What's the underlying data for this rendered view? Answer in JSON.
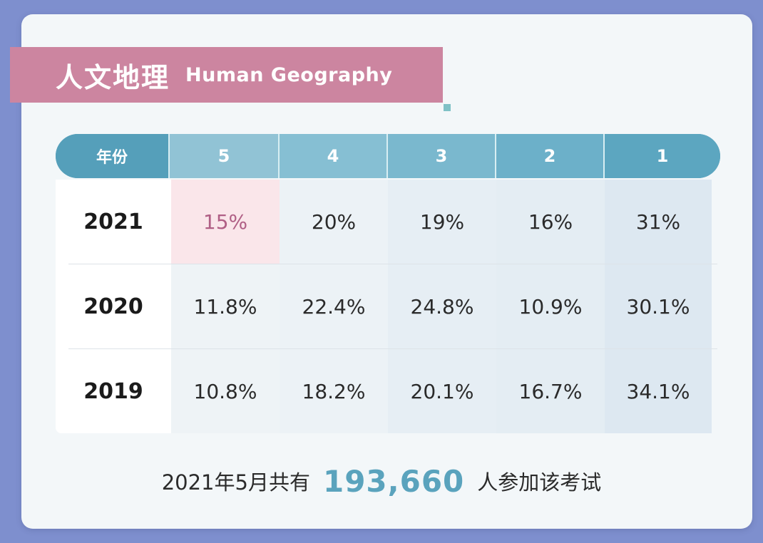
{
  "title": {
    "cn": "人文地理",
    "en": "Human Geography"
  },
  "chart_data": {
    "type": "table",
    "columns": [
      "年份",
      "5",
      "4",
      "3",
      "2",
      "1"
    ],
    "rows": [
      {
        "year": "2021",
        "values": [
          "15%",
          "20%",
          "19%",
          "16%",
          "31%"
        ]
      },
      {
        "year": "2020",
        "values": [
          "11.8%",
          "22.4%",
          "24.8%",
          "10.9%",
          "30.1%"
        ]
      },
      {
        "year": "2019",
        "values": [
          "10.8%",
          "18.2%",
          "20.1%",
          "16.7%",
          "34.1%"
        ]
      }
    ],
    "highlighted_cell": {
      "row": "2021",
      "column": "5"
    }
  },
  "footer": {
    "prefix": "2021年5月共有",
    "count": "193,660",
    "suffix": "人参加该考试"
  },
  "colors": {
    "background": "#7e8fce",
    "card": "#f3f7f9",
    "title_banner": "#cc85a0",
    "header": "#5fa7bf",
    "accent_number": "#5aa3bd",
    "highlight": "#fae6ea",
    "highlight_text": "#b05f85"
  }
}
